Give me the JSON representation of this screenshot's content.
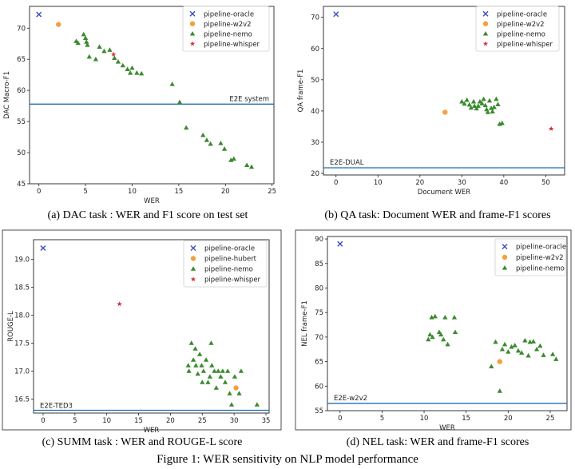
{
  "figure_caption": "Figure 1: WER sensitivity on NLP model performance",
  "colors": {
    "oracle": "#3b4cc0",
    "w2v2": "#f5a040",
    "nemo": "#3a8a2e",
    "whisper": "#d62e3a",
    "refline": "#1f6fb4"
  },
  "chart_data": [
    {
      "id": "a",
      "type": "scatter",
      "caption": "(a) DAC task : WER and F1 score on test set",
      "xlabel": "WER",
      "ylabel": "DAC Macro-F1",
      "xlim": [
        -1,
        25.2
      ],
      "ylim": [
        45,
        73.5
      ],
      "xticks": [
        0,
        5,
        10,
        15,
        20,
        25
      ],
      "yticks": [
        45,
        50,
        55,
        60,
        65,
        70
      ],
      "legend_position": "top-right",
      "ref_line": {
        "y": 57.8,
        "label": "E2E system",
        "label_side": "right"
      },
      "series": [
        {
          "name": "pipeline-oracle",
          "marker": "x",
          "color": "#3b4cc0",
          "points": [
            [
              0,
              72.2
            ]
          ]
        },
        {
          "name": "pipeline-w2v2",
          "marker": "circle",
          "color": "#f5a040",
          "points": [
            [
              2.1,
              70.6
            ]
          ]
        },
        {
          "name": "pipeline-nemo",
          "marker": "triangle",
          "color": "#3a8a2e",
          "points": [
            [
              4.0,
              67.9
            ],
            [
              4.2,
              67.6
            ],
            [
              4.8,
              69.0
            ],
            [
              5.0,
              68.4
            ],
            [
              5.1,
              67.8
            ],
            [
              5.2,
              67.3
            ],
            [
              5.4,
              65.4
            ],
            [
              6.1,
              65.0
            ],
            [
              6.5,
              67.0
            ],
            [
              7.0,
              66.3
            ],
            [
              7.6,
              66.5
            ],
            [
              8.1,
              65.2
            ],
            [
              8.5,
              64.6
            ],
            [
              9.0,
              64.0
            ],
            [
              9.5,
              63.4
            ],
            [
              9.8,
              62.8
            ],
            [
              10.0,
              63.6
            ],
            [
              10.5,
              62.8
            ],
            [
              11.0,
              62.7
            ],
            [
              14.3,
              61.0
            ],
            [
              15.1,
              58.1
            ],
            [
              15.8,
              54.0
            ],
            [
              17.6,
              52.8
            ],
            [
              18.0,
              52.0
            ],
            [
              18.4,
              51.4
            ],
            [
              19.5,
              51.5
            ],
            [
              19.9,
              50.6
            ],
            [
              20.6,
              48.8
            ],
            [
              20.9,
              49.0
            ],
            [
              22.3,
              48.0
            ],
            [
              22.8,
              47.7
            ]
          ]
        },
        {
          "name": "pipeline-whisper",
          "marker": "star",
          "color": "#d62e3a",
          "points": [
            [
              8.0,
              65.8
            ]
          ]
        }
      ]
    },
    {
      "id": "b",
      "type": "scatter",
      "caption": "(b) QA task: Document WER and frame-F1 scores",
      "xlabel": "Document WER",
      "ylabel": "QA frame-F1",
      "xlim": [
        -3,
        54.5
      ],
      "ylim": [
        19.5,
        73.5
      ],
      "xticks": [
        0,
        10,
        20,
        30,
        40,
        50
      ],
      "yticks": [
        20,
        30,
        40,
        50,
        60,
        70
      ],
      "legend_position": "top-right",
      "ref_line": {
        "y": 21.8,
        "label": "E2E-DUAL",
        "label_side": "left"
      },
      "series": [
        {
          "name": "pipeline-oracle",
          "marker": "x",
          "color": "#3b4cc0",
          "points": [
            [
              0,
              71.0
            ]
          ]
        },
        {
          "name": "pipeline-w2v2",
          "marker": "circle",
          "color": "#f5a040",
          "points": [
            [
              26.0,
              39.6
            ]
          ]
        },
        {
          "name": "pipeline-nemo",
          "marker": "triangle",
          "color": "#3a8a2e",
          "points": [
            [
              30.0,
              43.0
            ],
            [
              30.6,
              42.3
            ],
            [
              31.2,
              43.5
            ],
            [
              31.8,
              42.0
            ],
            [
              32.2,
              41.0
            ],
            [
              32.8,
              43.0
            ],
            [
              33.0,
              41.6
            ],
            [
              33.5,
              40.8
            ],
            [
              33.9,
              41.6
            ],
            [
              34.3,
              43.0
            ],
            [
              34.8,
              42.4
            ],
            [
              35.2,
              43.8
            ],
            [
              35.6,
              41.8
            ],
            [
              35.9,
              40.5
            ],
            [
              36.2,
              39.6
            ],
            [
              36.6,
              43.3
            ],
            [
              37.0,
              40.9
            ],
            [
              37.3,
              39.8
            ],
            [
              37.7,
              41.2
            ],
            [
              38.2,
              43.8
            ],
            [
              38.6,
              42.1
            ],
            [
              39.0,
              35.8
            ],
            [
              39.6,
              36.1
            ]
          ]
        },
        {
          "name": "pipeline-whisper",
          "marker": "star",
          "color": "#d62e3a",
          "points": [
            [
              51.3,
              34.3
            ]
          ]
        }
      ]
    },
    {
      "id": "c",
      "type": "scatter",
      "caption": "(c) SUMM task : WER and ROUGE-L score",
      "xlabel": "WER",
      "ylabel": "ROUGE-L",
      "xlim": [
        -1.5,
        35.5
      ],
      "ylim": [
        16.25,
        19.35
      ],
      "xticks": [
        0,
        5,
        10,
        15,
        20,
        25,
        30,
        35
      ],
      "yticks": [
        16.5,
        17.0,
        17.5,
        18.0,
        18.5,
        19.0
      ],
      "legend_position": "top-right",
      "ref_line": {
        "y": 16.3,
        "label": "E2E-TED3",
        "label_side": "left"
      },
      "series": [
        {
          "name": "pipeline-oracle",
          "marker": "x",
          "color": "#3b4cc0",
          "points": [
            [
              0,
              19.2
            ]
          ]
        },
        {
          "name": "pipeline-hubert",
          "marker": "circle",
          "color": "#f5a040",
          "points": [
            [
              30.3,
              16.7
            ]
          ]
        },
        {
          "name": "pipeline-nemo",
          "marker": "triangle",
          "color": "#3a8a2e",
          "points": [
            [
              22.8,
              17.1
            ],
            [
              22.9,
              17.0
            ],
            [
              23.3,
              17.5
            ],
            [
              23.6,
              17.2
            ],
            [
              23.9,
              17.4
            ],
            [
              24.0,
              17.1
            ],
            [
              24.3,
              16.95
            ],
            [
              24.6,
              17.3
            ],
            [
              24.9,
              17.1
            ],
            [
              25.0,
              16.8
            ],
            [
              25.2,
              17.0
            ],
            [
              25.6,
              17.2
            ],
            [
              25.9,
              16.8
            ],
            [
              26.2,
              16.9
            ],
            [
              26.4,
              17.5
            ],
            [
              26.5,
              17.1
            ],
            [
              26.9,
              17.0
            ],
            [
              27.2,
              16.7
            ],
            [
              27.5,
              17.0
            ],
            [
              27.9,
              16.9
            ],
            [
              28.2,
              17.0
            ],
            [
              28.6,
              16.8
            ],
            [
              29.0,
              17.0
            ],
            [
              29.3,
              16.6
            ],
            [
              29.6,
              16.4
            ],
            [
              30.1,
              16.9
            ],
            [
              30.8,
              16.6
            ],
            [
              31.1,
              17.0
            ],
            [
              33.6,
              16.4
            ]
          ]
        },
        {
          "name": "pipeline-whisper",
          "marker": "star",
          "color": "#d62e3a",
          "points": [
            [
              12.0,
              18.2
            ]
          ]
        }
      ]
    },
    {
      "id": "d",
      "type": "scatter",
      "caption": "(d) NEL task: WER and frame-F1 scores",
      "xlabel": "WER",
      "ylabel": "NEL frame-F1",
      "xlim": [
        -1.5,
        27
      ],
      "ylim": [
        55,
        90.5
      ],
      "xticks": [
        0,
        5,
        10,
        15,
        20,
        25
      ],
      "yticks": [
        55,
        60,
        65,
        70,
        75,
        80,
        85,
        90
      ],
      "legend_position": "top-right",
      "ref_line": {
        "y": 56.5,
        "label": "E2E-w2v2",
        "label_side": "left"
      },
      "series": [
        {
          "name": "pipeline-oracle",
          "marker": "x",
          "color": "#3b4cc0",
          "points": [
            [
              0,
              89.0
            ]
          ]
        },
        {
          "name": "pipeline-w2v2",
          "marker": "circle",
          "color": "#f5a040",
          "points": [
            [
              19.0,
              65.0
            ]
          ]
        },
        {
          "name": "pipeline-nemo",
          "marker": "triangle",
          "color": "#3a8a2e",
          "points": [
            [
              10.5,
              69.5
            ],
            [
              10.7,
              70.5
            ],
            [
              10.9,
              74.0
            ],
            [
              11.0,
              70.0
            ],
            [
              11.3,
              74.2
            ],
            [
              11.8,
              71.0
            ],
            [
              12.0,
              70.5
            ],
            [
              12.3,
              69.5
            ],
            [
              12.5,
              74.0
            ],
            [
              12.8,
              68.5
            ],
            [
              13.6,
              74.0
            ],
            [
              13.7,
              71.0
            ],
            [
              18.0,
              64.0
            ],
            [
              18.5,
              69.0
            ],
            [
              19.0,
              59.0
            ],
            [
              19.3,
              67.5
            ],
            [
              19.6,
              68.5
            ],
            [
              20.0,
              67.0
            ],
            [
              20.4,
              68.0
            ],
            [
              20.8,
              68.3
            ],
            [
              21.2,
              67.2
            ],
            [
              21.6,
              66.8
            ],
            [
              22.0,
              69.3
            ],
            [
              22.4,
              66.2
            ],
            [
              22.6,
              69.0
            ],
            [
              23.0,
              69.1
            ],
            [
              23.4,
              67.5
            ],
            [
              23.8,
              68.2
            ],
            [
              24.2,
              66.3
            ],
            [
              25.3,
              66.5
            ],
            [
              25.7,
              65.5
            ]
          ]
        }
      ]
    }
  ]
}
